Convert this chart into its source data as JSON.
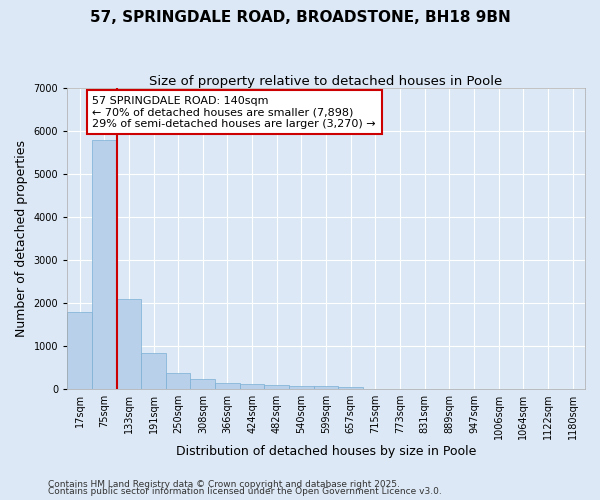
{
  "title": "57, SPRINGDALE ROAD, BROADSTONE, BH18 9BN",
  "subtitle": "Size of property relative to detached houses in Poole",
  "xlabel": "Distribution of detached houses by size in Poole",
  "ylabel": "Number of detached properties",
  "categories": [
    "17sqm",
    "75sqm",
    "133sqm",
    "191sqm",
    "250sqm",
    "308sqm",
    "366sqm",
    "424sqm",
    "482sqm",
    "540sqm",
    "599sqm",
    "657sqm",
    "715sqm",
    "773sqm",
    "831sqm",
    "889sqm",
    "947sqm",
    "1006sqm",
    "1064sqm",
    "1122sqm",
    "1180sqm"
  ],
  "values": [
    1780,
    5800,
    2080,
    820,
    370,
    220,
    130,
    105,
    80,
    55,
    50,
    30,
    0,
    0,
    0,
    0,
    0,
    0,
    0,
    0,
    0
  ],
  "bar_color": "#b8d0ea",
  "bar_edgecolor": "#7aafd4",
  "red_line_x": 1.5,
  "property_label": "57 SPRINGDALE ROAD: 140sqm",
  "annotation_line1": "← 70% of detached houses are smaller (7,898)",
  "annotation_line2": "29% of semi-detached houses are larger (3,270) →",
  "annotation_box_facecolor": "#ffffff",
  "annotation_box_edgecolor": "#cc0000",
  "ylim": [
    0,
    7000
  ],
  "yticks": [
    0,
    1000,
    2000,
    3000,
    4000,
    5000,
    6000,
    7000
  ],
  "background_color": "#dce8f5",
  "grid_color": "#ffffff",
  "footer_line1": "Contains HM Land Registry data © Crown copyright and database right 2025.",
  "footer_line2": "Contains public sector information licensed under the Open Government Licence v3.0.",
  "title_fontsize": 11,
  "subtitle_fontsize": 9.5,
  "axis_label_fontsize": 9,
  "tick_fontsize": 7,
  "annotation_fontsize": 8,
  "footer_fontsize": 6.5
}
